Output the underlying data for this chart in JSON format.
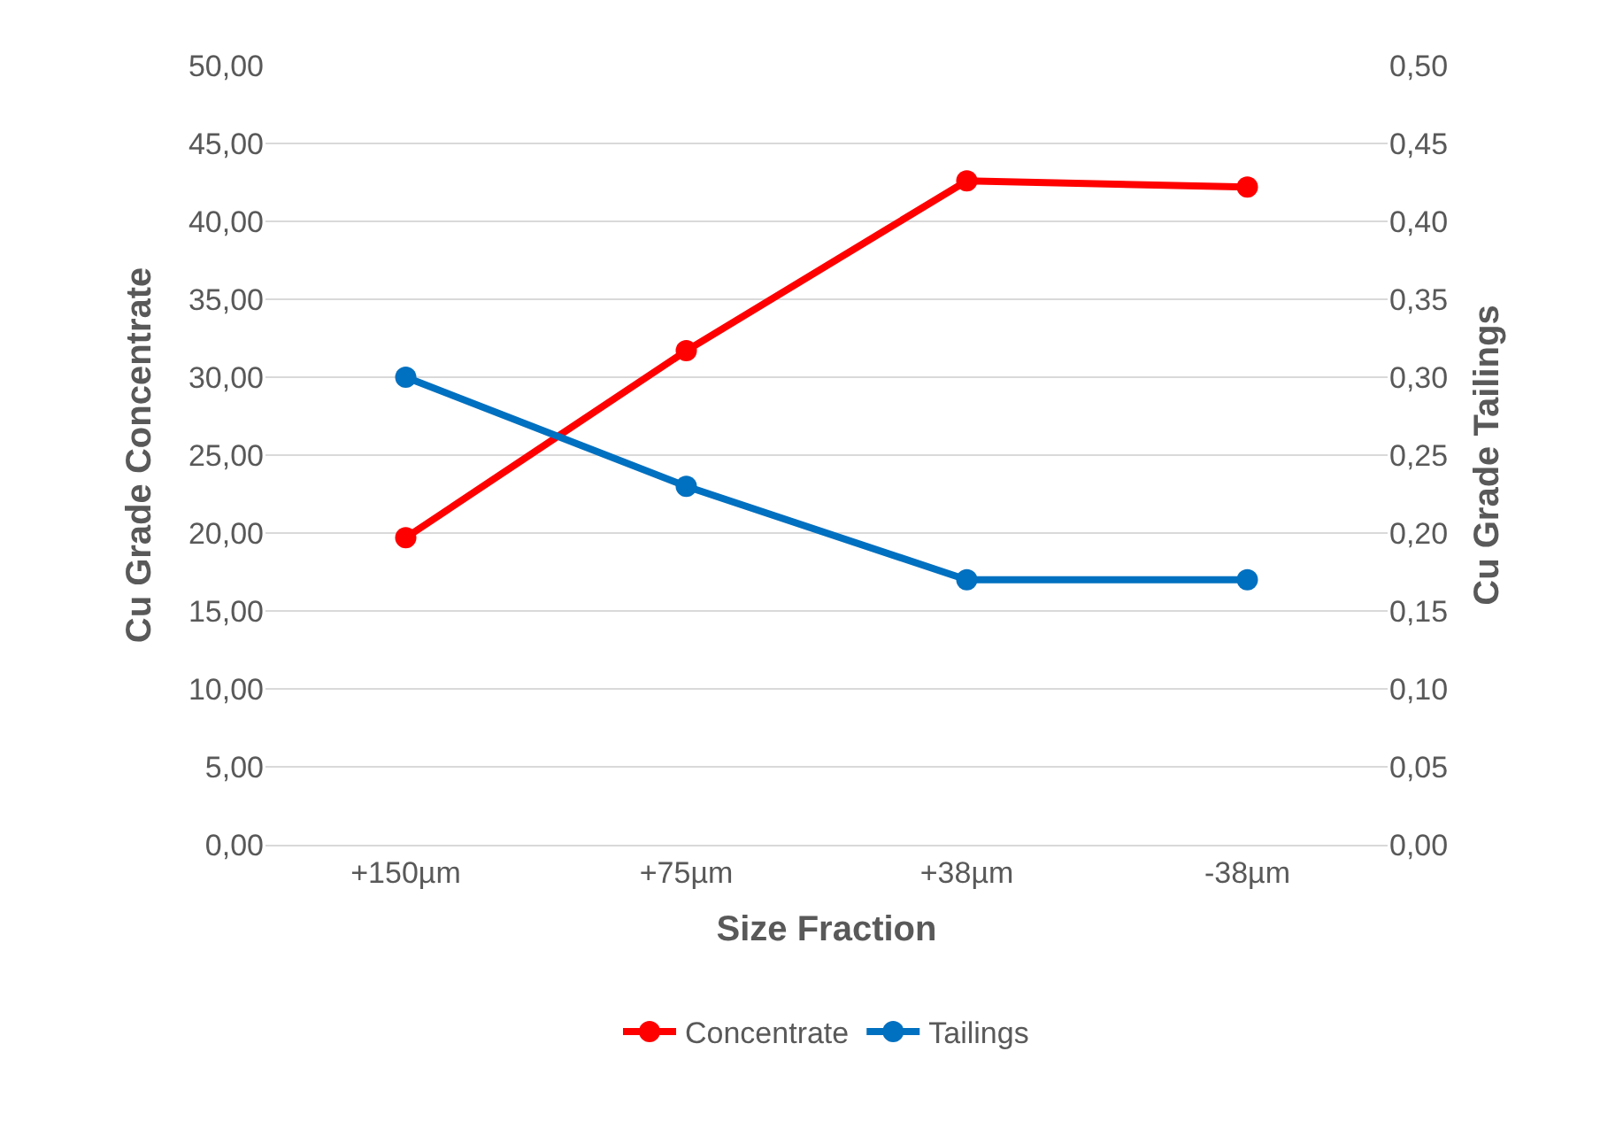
{
  "chart_data": {
    "type": "line",
    "xlabel": "Size Fraction",
    "ylabel": "Cu Grade Concentrate",
    "y2label": "Cu Grade Tailings",
    "categories": [
      "+150µm",
      "+75µm",
      "+38µm",
      "-38µm"
    ],
    "series": [
      {
        "name": "Concentrate",
        "color": "#ff0000",
        "values": [
          19.7,
          31.7,
          42.6,
          42.2
        ]
      },
      {
        "name": "Tailings",
        "color": "#0070c0",
        "values": [
          0.3,
          0.23,
          0.17,
          0.17
        ],
        "axis": "y2"
      }
    ],
    "ylim": [
      0,
      50
    ],
    "yticks": [
      {
        "value": 0,
        "label": "0,00"
      },
      {
        "value": 5,
        "label": "5,00"
      },
      {
        "value": 10,
        "label": "10,00"
      },
      {
        "value": 15,
        "label": "15,00"
      },
      {
        "value": 20,
        "label": "20,00"
      },
      {
        "value": 25,
        "label": "25,00"
      },
      {
        "value": 30,
        "label": "30,00"
      },
      {
        "value": 35,
        "label": "35,00"
      },
      {
        "value": 40,
        "label": "40,00"
      },
      {
        "value": 45,
        "label": "45,00"
      },
      {
        "value": 50,
        "label": "50,00"
      }
    ],
    "y2lim": [
      0,
      0.5
    ],
    "y2ticks": [
      {
        "value": 0,
        "label": "0,00"
      },
      {
        "value": 0.05,
        "label": "0,05"
      },
      {
        "value": 0.1,
        "label": "0,10"
      },
      {
        "value": 0.15,
        "label": "0,15"
      },
      {
        "value": 0.2,
        "label": "0,20"
      },
      {
        "value": 0.25,
        "label": "0,25"
      },
      {
        "value": 0.3,
        "label": "0,30"
      },
      {
        "value": 0.35,
        "label": "0,35"
      },
      {
        "value": 0.4,
        "label": "0,40"
      },
      {
        "value": 0.45,
        "label": "0,45"
      },
      {
        "value": 0.5,
        "label": "0,50"
      }
    ],
    "grid": "y",
    "legend": "bottom",
    "marker": "circle",
    "line_style": "solid"
  }
}
